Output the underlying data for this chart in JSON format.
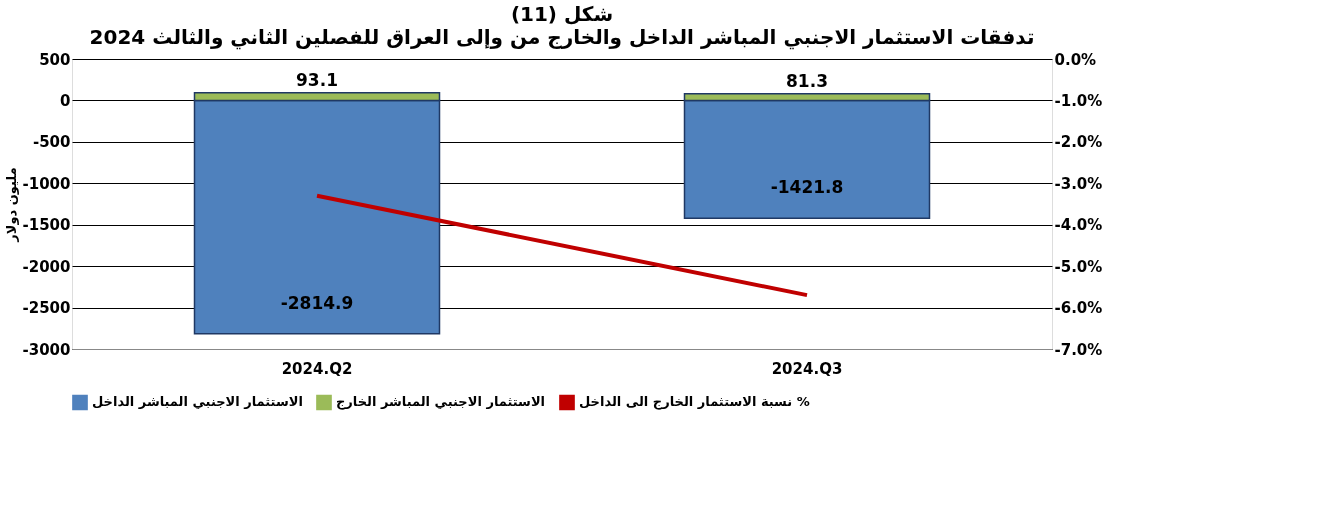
{
  "chart_data": {
    "type": "bar",
    "title": "شكل (11)",
    "subtitle": "تدفقات الاستثمار الاجنبي المباشر الداخل والخارج من وإلى العراق للفصلين الثاني والثالث 2024",
    "categories": [
      "2024.Q2",
      "2024.Q3"
    ],
    "series": [
      {
        "name": "الاستثمار الاجنبي المباشر الداخل",
        "color": "#4f81bd",
        "values": [
          -2814.9,
          -1421.8
        ],
        "value_labels": [
          "-2814.9",
          "-1421.8"
        ]
      },
      {
        "name": "الاستثمار الاجنبي المباشر الخارج",
        "color": "#9bbb59",
        "values": [
          93.1,
          81.3
        ],
        "value_labels": [
          "93.1",
          "81.3"
        ]
      },
      {
        "name": "نسبة الاستثمار الخارج الى الداخل %",
        "color": "#c00000",
        "type": "line",
        "axis": "y2",
        "values": [
          -3.3,
          -5.7
        ]
      }
    ],
    "ylabel": "مليون دولار",
    "ylim": [
      -3000,
      500
    ],
    "yticks": [
      -3000,
      -2500,
      -2000,
      -1500,
      -1000,
      -500,
      0,
      500
    ],
    "y2lim": [
      -7,
      0
    ],
    "y2ticks": [
      {
        "value": -7,
        "label": "-7.0%"
      },
      {
        "value": -6,
        "label": "-6.0%"
      },
      {
        "value": -5,
        "label": "-5.0%"
      },
      {
        "value": -4,
        "label": "-4.0%"
      },
      {
        "value": -3,
        "label": "-3.0%"
      },
      {
        "value": -2,
        "label": "-2.0%"
      },
      {
        "value": -1,
        "label": "-1.0%"
      },
      {
        "value": 0,
        "label": "0.0%"
      }
    ],
    "stacked": true,
    "grid": "y",
    "legend": "bottom"
  }
}
